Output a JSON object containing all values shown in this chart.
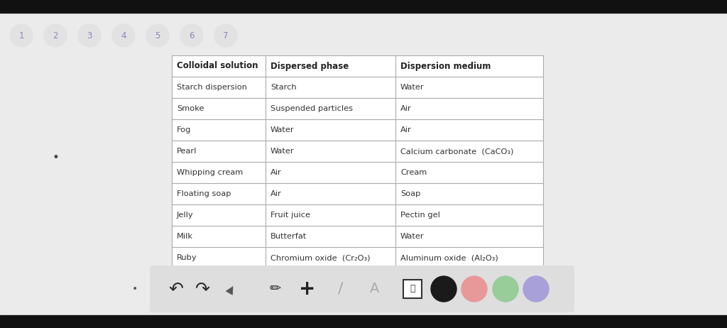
{
  "bg_color": "#ebebeb",
  "top_bar_color": "#111111",
  "nav_circles": [
    "1",
    "2",
    "3",
    "4",
    "5",
    "6",
    "7"
  ],
  "nav_circle_color": "#e2e2e2",
  "nav_text_color": "#8888bb",
  "table_bg": "#ffffff",
  "table_border_color": "#aaaaaa",
  "header_text_color": "#222222",
  "cell_text_color": "#333333",
  "columns": [
    "Colloidal solution",
    "Dispersed phase",
    "Dispersion medium"
  ],
  "rows": [
    [
      "Starch dispersion",
      "Starch",
      "Water"
    ],
    [
      "Smoke",
      "Suspended particles",
      "Air"
    ],
    [
      "Fog",
      "Water",
      "Air"
    ],
    [
      "Pearl",
      "Water",
      "Calcium carbonate  (CaCO₃)"
    ],
    [
      "Whipping cream",
      "Air",
      "Cream"
    ],
    [
      "Floating soap",
      "Air",
      "Soap"
    ],
    [
      "Jelly",
      "Fruit juice",
      "Pectin gel"
    ],
    [
      "Milk",
      "Butterfat",
      "Water"
    ],
    [
      "Ruby",
      "Chromium oxide  (Cr₂O₃)",
      "Aluminum oxide  (Al₂O₃)"
    ]
  ],
  "toolbar_bg": "#dedede",
  "toolbar_circles": [
    "#1a1a1a",
    "#e89898",
    "#98cc98",
    "#a8a0d8"
  ],
  "bullet_color": "#444444",
  "font_size_header": 8.5,
  "font_size_cell": 8.2,
  "font_size_nav": 8.5
}
